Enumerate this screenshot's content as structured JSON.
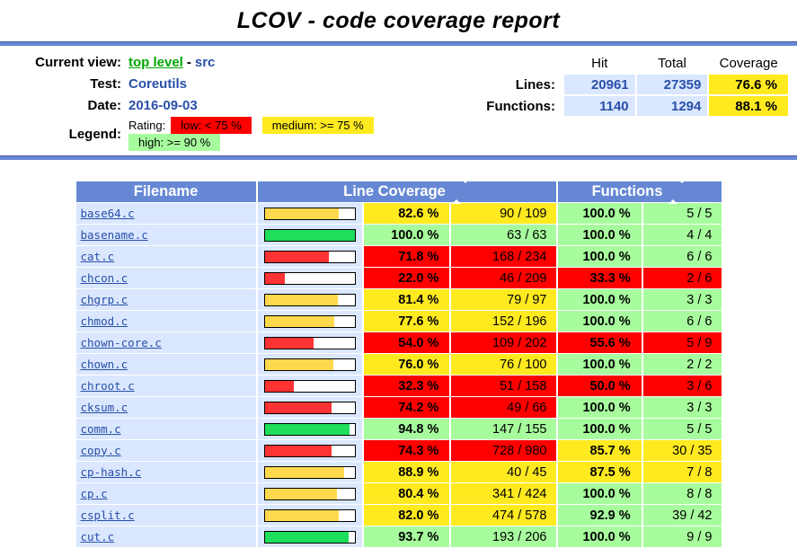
{
  "page": {
    "title": "LCOV - code coverage report"
  },
  "header": {
    "current_view_label": "Current view:",
    "current_view_link": "top level",
    "current_view_sep": "-",
    "current_view_page": "src",
    "test_label": "Test:",
    "test_value": "Coreutils",
    "date_label": "Date:",
    "date_value": "2016-09-03",
    "legend_label": "Legend:",
    "rating_label": "Rating:",
    "legend_items": [
      {
        "label": "low: < 75 %",
        "color": "#FF0000",
        "rating": "low"
      },
      {
        "label": "medium: >= 75 %",
        "color": "#FFEA20",
        "rating": "medium"
      },
      {
        "label": "high: >= 90 %",
        "color": "#A7FC9D",
        "rating": "high"
      }
    ],
    "summary": {
      "columns": [
        "Hit",
        "Total",
        "Coverage"
      ],
      "rows": [
        {
          "label": "Lines:",
          "hit": "20961",
          "total": "27359",
          "coverage": "76.6 %"
        },
        {
          "label": "Functions:",
          "hit": "1140",
          "total": "1294",
          "coverage": "88.1 %"
        }
      ]
    }
  },
  "table": {
    "columns": {
      "filename": "Filename",
      "line_coverage": "Line Coverage",
      "functions": "Functions"
    },
    "sort_icon": "up-down-sort-arrows",
    "rows": [
      {
        "filename": "base64.c",
        "line_pct": "82.6",
        "line_ratio": "90 / 109",
        "func_pct": "100.0",
        "func_ratio": "5 / 5"
      },
      {
        "filename": "basename.c",
        "line_pct": "100.0",
        "line_ratio": "63 / 63",
        "func_pct": "100.0",
        "func_ratio": "4 / 4"
      },
      {
        "filename": "cat.c",
        "line_pct": "71.8",
        "line_ratio": "168 / 234",
        "func_pct": "100.0",
        "func_ratio": "6 / 6"
      },
      {
        "filename": "chcon.c",
        "line_pct": "22.0",
        "line_ratio": "46 / 209",
        "func_pct": "33.3",
        "func_ratio": "2 / 6"
      },
      {
        "filename": "chgrp.c",
        "line_pct": "81.4",
        "line_ratio": "79 / 97",
        "func_pct": "100.0",
        "func_ratio": "3 / 3"
      },
      {
        "filename": "chmod.c",
        "line_pct": "77.6",
        "line_ratio": "152 / 196",
        "func_pct": "100.0",
        "func_ratio": "6 / 6"
      },
      {
        "filename": "chown-core.c",
        "line_pct": "54.0",
        "line_ratio": "109 / 202",
        "func_pct": "55.6",
        "func_ratio": "5 / 9"
      },
      {
        "filename": "chown.c",
        "line_pct": "76.0",
        "line_ratio": "76 / 100",
        "func_pct": "100.0",
        "func_ratio": "2 / 2"
      },
      {
        "filename": "chroot.c",
        "line_pct": "32.3",
        "line_ratio": "51 / 158",
        "func_pct": "50.0",
        "func_ratio": "3 / 6"
      },
      {
        "filename": "cksum.c",
        "line_pct": "74.2",
        "line_ratio": "49 / 66",
        "func_pct": "100.0",
        "func_ratio": "3 / 3"
      },
      {
        "filename": "comm.c",
        "line_pct": "94.8",
        "line_ratio": "147 / 155",
        "func_pct": "100.0",
        "func_ratio": "5 / 5"
      },
      {
        "filename": "copy.c",
        "line_pct": "74.3",
        "line_ratio": "728 / 980",
        "func_pct": "85.7",
        "func_ratio": "30 / 35"
      },
      {
        "filename": "cp-hash.c",
        "line_pct": "88.9",
        "line_ratio": "40 / 45",
        "func_pct": "87.5",
        "func_ratio": "7 / 8"
      },
      {
        "filename": "cp.c",
        "line_pct": "80.4",
        "line_ratio": "341 / 424",
        "func_pct": "100.0",
        "func_ratio": "8 / 8"
      },
      {
        "filename": "csplit.c",
        "line_pct": "82.0",
        "line_ratio": "474 / 578",
        "func_pct": "92.9",
        "func_ratio": "39 / 42"
      },
      {
        "filename": "cut.c",
        "line_pct": "93.7",
        "line_ratio": "193 / 206",
        "func_pct": "100.0",
        "func_ratio": "9 / 9"
      }
    ]
  },
  "colors": {
    "header_blue": "#6688D4",
    "row_blue": "#DAE7FE",
    "low": "#FF0000",
    "medium": "#FFEA20",
    "high": "#A7FC9D",
    "bar_low": "#FF3333",
    "bar_medium": "#FFD94D",
    "bar_high": "#1FDE5B",
    "link_blue": "#284FA8",
    "link_green": "#00A500"
  },
  "thresholds": {
    "medium_min": 75,
    "high_min": 90
  }
}
